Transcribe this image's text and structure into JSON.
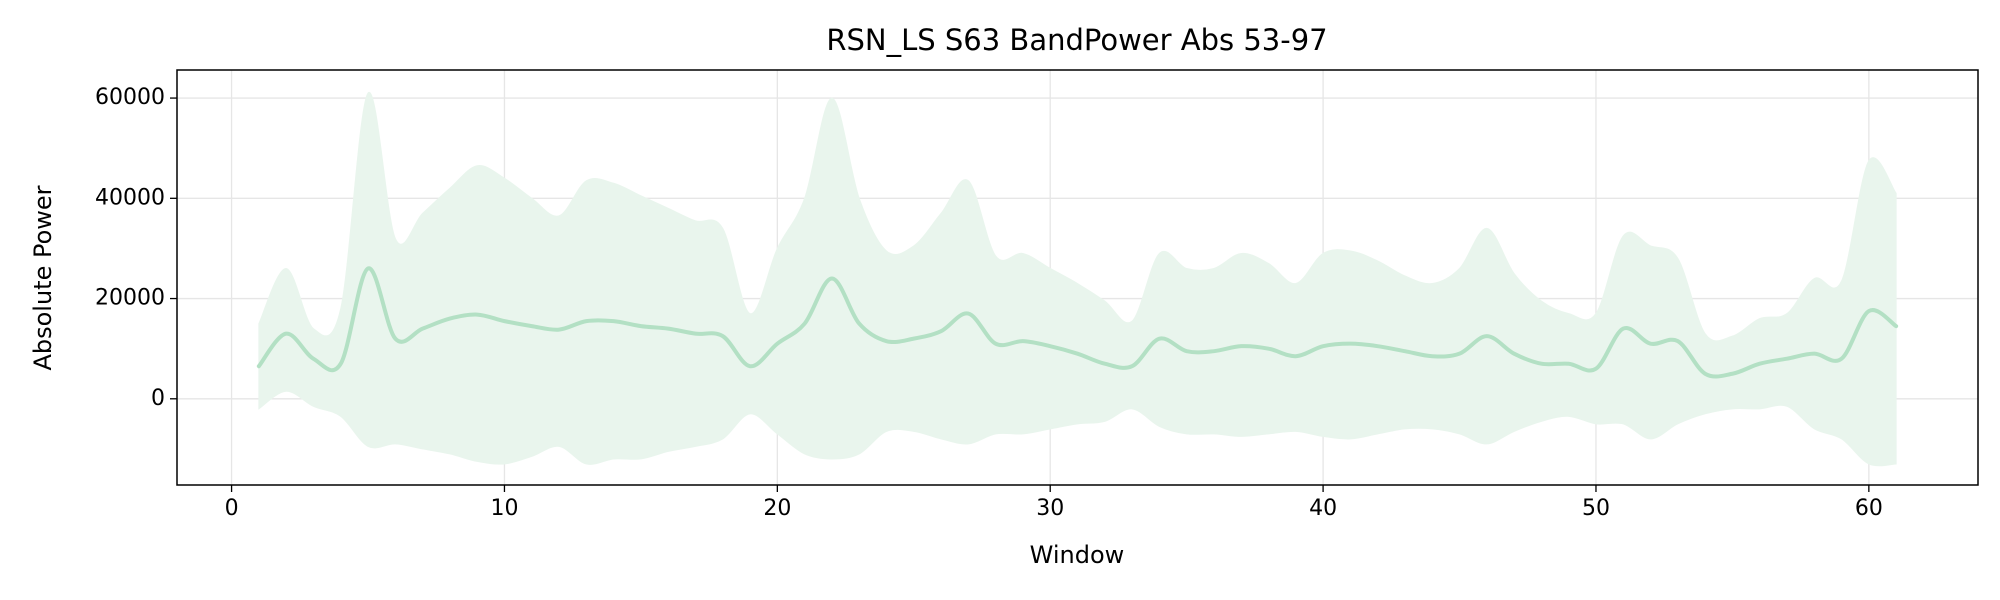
{
  "chart_data": {
    "type": "line",
    "title": "RSN_LS S63 BandPower Abs 53-97",
    "xlabel": "Window",
    "ylabel": "Absolute Power",
    "x": [
      1,
      2,
      3,
      4,
      5,
      6,
      7,
      8,
      9,
      10,
      11,
      12,
      13,
      14,
      15,
      16,
      17,
      18,
      19,
      20,
      21,
      22,
      23,
      24,
      25,
      26,
      27,
      28,
      29,
      30,
      31,
      32,
      33,
      34,
      35,
      36,
      37,
      38,
      39,
      40,
      41,
      42,
      43,
      44,
      45,
      46,
      47,
      48,
      49,
      50,
      51,
      52,
      53,
      54,
      55,
      56,
      57,
      58,
      59,
      60,
      61
    ],
    "series": [
      {
        "color": "#b3e0c4",
        "band_color": "#e9f5ed",
        "values": [
          6500,
          13000,
          8000,
          7000,
          26000,
          12000,
          14000,
          16000,
          16800,
          15500,
          14500,
          13800,
          15500,
          15500,
          14500,
          14000,
          13000,
          12500,
          6500,
          11000,
          15000,
          24000,
          15000,
          11500,
          12000,
          13500,
          17000,
          11000,
          11500,
          10500,
          9000,
          7000,
          6500,
          12000,
          9500,
          9500,
          10500,
          10000,
          8500,
          10500,
          11000,
          10500,
          9500,
          8500,
          9000,
          12500,
          9000,
          7000,
          7000,
          6000,
          14000,
          11000,
          11500,
          5000,
          5000,
          7000,
          8000,
          9000,
          8000,
          17500,
          14500
        ],
        "upper": [
          15000,
          26000,
          14000,
          18000,
          61000,
          32000,
          37000,
          42000,
          46500,
          44000,
          40000,
          36500,
          43500,
          43000,
          40500,
          38000,
          35500,
          34000,
          17000,
          30000,
          40000,
          60000,
          40000,
          29500,
          30500,
          37000,
          43500,
          28500,
          29000,
          26000,
          23000,
          19500,
          15500,
          29000,
          26000,
          26000,
          29000,
          27000,
          23000,
          29000,
          29500,
          27500,
          24500,
          23000,
          26000,
          34000,
          25000,
          19500,
          17000,
          17000,
          32500,
          30500,
          28000,
          13000,
          12500,
          16000,
          17000,
          24000,
          23500,
          47500,
          41000
        ],
        "lower": [
          -2000,
          1500,
          -1500,
          -3500,
          -9500,
          -9000,
          -10000,
          -11000,
          -12500,
          -13000,
          -11500,
          -9500,
          -13000,
          -12000,
          -12000,
          -10500,
          -9500,
          -8000,
          -3000,
          -7000,
          -11000,
          -12000,
          -11000,
          -6500,
          -6500,
          -8000,
          -9000,
          -7000,
          -7000,
          -6000,
          -5000,
          -4500,
          -2000,
          -5500,
          -7000,
          -7000,
          -7500,
          -7000,
          -6500,
          -7500,
          -8000,
          -7000,
          -6000,
          -6000,
          -7000,
          -9000,
          -6500,
          -4500,
          -3500,
          -5000,
          -5000,
          -8000,
          -5000,
          -3000,
          -2000,
          -2000,
          -1500,
          -6000,
          -8000,
          -13000,
          -13000
        ]
      }
    ],
    "xlim": [
      -2,
      64
    ],
    "ylim": [
      -17200,
      65600
    ],
    "xticks": [
      0,
      10,
      20,
      30,
      40,
      50,
      60
    ],
    "yticks": [
      0,
      20000,
      40000,
      60000
    ],
    "grid": true
  }
}
